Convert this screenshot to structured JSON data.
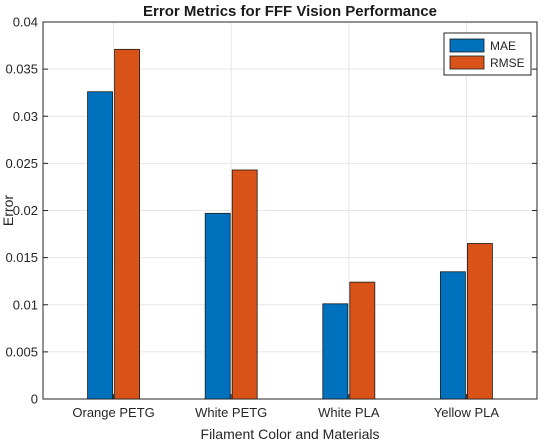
{
  "chart_data": {
    "type": "bar",
    "title": "Error Metrics for FFF Vision Performance",
    "xlabel": "Filament Color and Materials",
    "ylabel": "Error",
    "categories": [
      "Orange PETG",
      "White PETG",
      "White PLA",
      "Yellow PLA"
    ],
    "series": [
      {
        "name": "MAE",
        "color": "#0072BD",
        "values": [
          0.0326,
          0.0197,
          0.0101,
          0.0135
        ]
      },
      {
        "name": "RMSE",
        "color": "#D95319",
        "values": [
          0.0371,
          0.0243,
          0.0124,
          0.0165
        ]
      }
    ],
    "ylim": [
      0,
      0.04
    ],
    "yticks": [
      0,
      0.005,
      0.01,
      0.015,
      0.02,
      0.025,
      0.03,
      0.035,
      0.04
    ],
    "ytick_labels": [
      "0",
      "0.005",
      "0.01",
      "0.015",
      "0.02",
      "0.025",
      "0.03",
      "0.035",
      "0.04"
    ],
    "grid": true,
    "legend_position": "top-right"
  }
}
